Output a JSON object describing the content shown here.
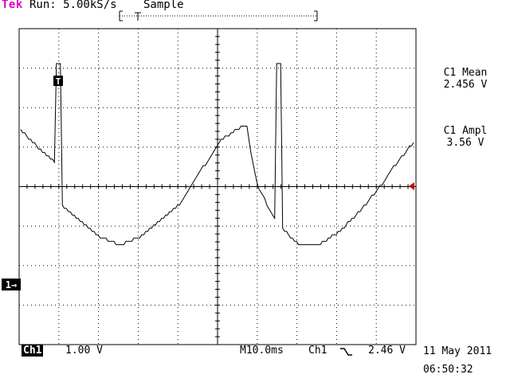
{
  "header": {
    "brand": "Tek",
    "run_status": "Run: 5.00kS/s",
    "acq_mode": "Sample"
  },
  "measurements": [
    {
      "label": "C1 Mean",
      "value": "2.456 V"
    },
    {
      "label": "C1 Ampl",
      "value": "3.56 V"
    }
  ],
  "markers": {
    "trigger_marker": "T",
    "channel_ref": "1→"
  },
  "footer": {
    "channel": "Ch1",
    "scale": "1.00 V",
    "timebase": "M10.0ms",
    "trig_source": "Ch1",
    "trig_slope_icon": "falling-edge-icon",
    "trig_level": "2.46 V",
    "date": "11 May 2011",
    "time": "06:50:32"
  },
  "chart_data": {
    "type": "line",
    "series": [
      {
        "x_ms": [
          0,
          3,
          5,
          8.5,
          9,
          10.5,
          15,
          20,
          25,
          30,
          35,
          40,
          45,
          50,
          54,
          56.5,
          57,
          58.2,
          60,
          65,
          70,
          75,
          80,
          85,
          90,
          95,
          99
        ],
        "y_volts": [
          3.9,
          3.6,
          3.4,
          3.1,
          3.8,
          2.0,
          1.6,
          1.2,
          1.0,
          1.2,
          1.6,
          2.0,
          2.8,
          3.6,
          3.9,
          4.0,
          4.0,
          3.2,
          2.4,
          1.5,
          1.0,
          1.0,
          1.3,
          1.8,
          2.4,
          3.1,
          3.6
        ]
      }
    ],
    "pulses": [
      {
        "x_ms": 9,
        "high_volts": 5.6
      },
      {
        "x_ms": 64.5,
        "high_volts": 5.6
      }
    ],
    "grid": true,
    "divisions_x": 10,
    "divisions_y": 8
  }
}
